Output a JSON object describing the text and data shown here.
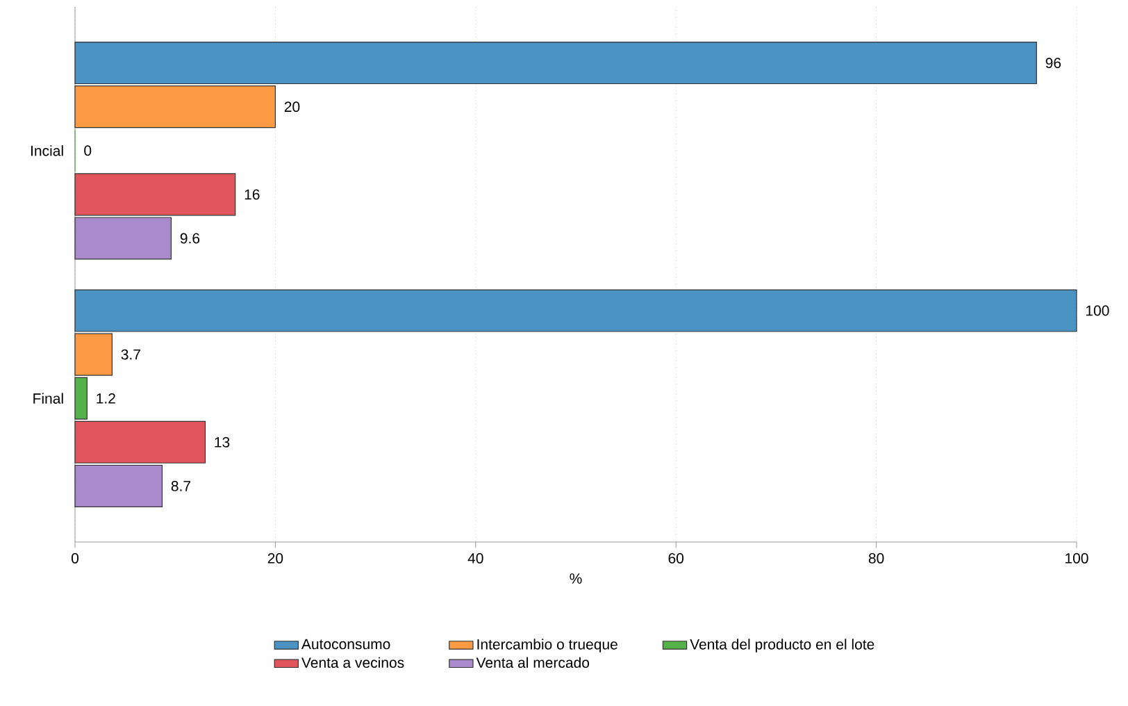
{
  "chart_data": {
    "type": "bar",
    "orientation": "horizontal",
    "xlabel": "%",
    "categories": [
      "Incial",
      "Final"
    ],
    "series": [
      {
        "name": "Autoconsumo",
        "color": "#4b93c3",
        "values": [
          96,
          100
        ]
      },
      {
        "name": "Intercambio o trueque",
        "color": "#fd9a44",
        "values": [
          20,
          3.7
        ]
      },
      {
        "name": "Venta del producto en el lote",
        "color": "#55b24a",
        "values": [
          0,
          1.2
        ]
      },
      {
        "name": "Venta a vecinos",
        "color": "#e2555c",
        "values": [
          16,
          13
        ]
      },
      {
        "name": "Venta al mercado",
        "color": "#a98bcd",
        "values": [
          9.6,
          8.7
        ]
      }
    ],
    "xlim": [
      0,
      100
    ],
    "xticks": [
      0,
      20,
      40,
      60,
      80,
      100
    ],
    "grid": "x",
    "legend": "bottom",
    "data_labels": true
  }
}
